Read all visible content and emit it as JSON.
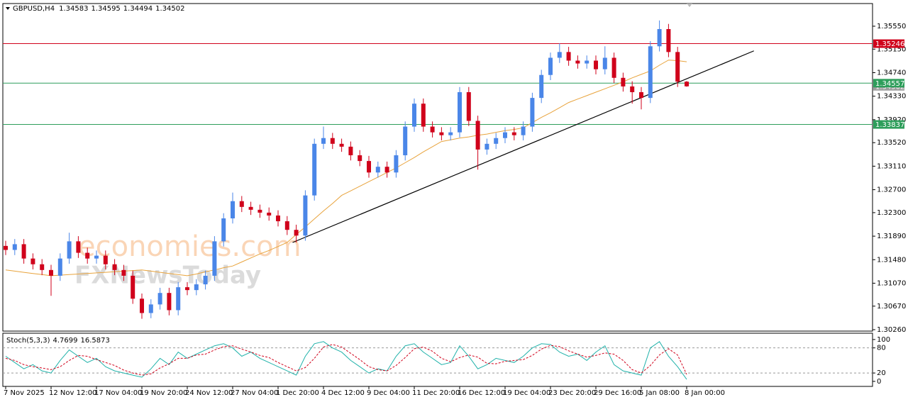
{
  "chart_data": {
    "type": "candlestick",
    "symbol": "GBPUSD,H4",
    "watermark": [
      "economies.com",
      "FXNewsToday"
    ],
    "categories": [
      "7 Nov 2025",
      null,
      null,
      null,
      null,
      "12 Nov 12:00",
      null,
      null,
      null,
      null,
      "17 Nov 04:00",
      null,
      null,
      null,
      null,
      "19 Nov 20:00",
      null,
      null,
      null,
      null,
      "24 Nov 12:00",
      null,
      null,
      null,
      null,
      "27 Nov 04:00",
      null,
      null,
      null,
      null,
      "1 Dec 20:00",
      null,
      null,
      null,
      null,
      "4 Dec 12:00",
      null,
      null,
      null,
      null,
      "9 Dec 04:00",
      null,
      null,
      null,
      null,
      "11 Dec 20:00",
      null,
      null,
      null,
      null,
      "16 Dec 12:00",
      null,
      null,
      null,
      null,
      "19 Dec 04:00",
      null,
      null,
      null,
      null,
      "23 Dec 20:00",
      null,
      null,
      null,
      null,
      "29 Dec 16:00",
      null,
      null,
      null,
      null,
      "5 Jan 08:00",
      null,
      null,
      null,
      null,
      "8 Jan 00:00"
    ],
    "open": [
      1.3172,
      1.3165,
      1.3175,
      1.315,
      1.314,
      1.313,
      1.312,
      1.315,
      1.318,
      1.316,
      1.315,
      1.3155,
      1.314,
      1.313,
      1.312,
      1.308,
      1.3055,
      1.307,
      1.309,
      1.306,
      1.31,
      1.3095,
      1.3105,
      1.312,
      1.318,
      1.322,
      1.325,
      1.324,
      1.3235,
      1.323,
      1.3225,
      1.3215,
      1.32,
      1.319,
      1.326,
      1.335,
      1.336,
      1.335,
      1.3345,
      1.333,
      1.332,
      1.33,
      1.331,
      1.33,
      1.333,
      1.338,
      1.342,
      1.338,
      1.337,
      1.3365,
      1.337,
      1.344,
      1.339,
      1.334,
      1.335,
      1.336,
      1.337,
      1.3365,
      1.338,
      1.343,
      1.347,
      1.35,
      1.351,
      1.3495,
      1.349,
      1.3495,
      1.348,
      1.35,
      1.3465,
      1.345,
      1.344,
      1.343,
      1.352,
      1.355,
      1.351,
      1.34583
    ],
    "high": [
      1.3181,
      1.3184,
      1.3184,
      1.3159,
      1.3149,
      1.3139,
      1.3159,
      1.3195,
      1.3189,
      1.3169,
      1.3164,
      1.3164,
      1.3149,
      1.3139,
      1.3129,
      1.3089,
      1.3079,
      1.3099,
      1.3099,
      1.3109,
      1.3109,
      1.3114,
      1.3129,
      1.3189,
      1.3229,
      1.3265,
      1.3259,
      1.3249,
      1.3244,
      1.3239,
      1.3234,
      1.3224,
      1.3209,
      1.3269,
      1.3359,
      1.338,
      1.3369,
      1.3359,
      1.3354,
      1.3339,
      1.3329,
      1.3319,
      1.3319,
      1.3339,
      1.3389,
      1.3429,
      1.3429,
      1.3389,
      1.3379,
      1.3379,
      1.3449,
      1.3449,
      1.3399,
      1.3359,
      1.3369,
      1.3379,
      1.3379,
      1.3389,
      1.3439,
      1.3479,
      1.3509,
      1.3525,
      1.3519,
      1.3504,
      1.3504,
      1.3504,
      1.352,
      1.3509,
      1.3474,
      1.3459,
      1.3449,
      1.3529,
      1.3565,
      1.3559,
      1.3519,
      1.34595
    ],
    "low": [
      1.3156,
      1.3156,
      1.3141,
      1.3131,
      1.3121,
      1.3085,
      1.3111,
      1.3141,
      1.3151,
      1.3141,
      1.3141,
      1.3131,
      1.3121,
      1.3111,
      1.3071,
      1.3045,
      1.3046,
      1.3061,
      1.3051,
      1.3051,
      1.3086,
      1.3086,
      1.3096,
      1.3111,
      1.3171,
      1.3211,
      1.3231,
      1.3226,
      1.3221,
      1.3216,
      1.3206,
      1.3191,
      1.3178,
      1.3181,
      1.3251,
      1.3341,
      1.3341,
      1.3336,
      1.3321,
      1.3311,
      1.3291,
      1.3291,
      1.3291,
      1.3291,
      1.3321,
      1.3371,
      1.3371,
      1.3361,
      1.3356,
      1.3356,
      1.3361,
      1.3381,
      1.3305,
      1.3331,
      1.3341,
      1.3351,
      1.3356,
      1.3356,
      1.3371,
      1.3421,
      1.3461,
      1.3491,
      1.3486,
      1.3481,
      1.3481,
      1.3471,
      1.3471,
      1.3456,
      1.3441,
      1.342,
      1.341,
      1.3421,
      1.3511,
      1.3501,
      1.3449,
      1.34494
    ],
    "close": [
      1.3165,
      1.3175,
      1.315,
      1.314,
      1.313,
      1.312,
      1.315,
      1.318,
      1.316,
      1.315,
      1.3155,
      1.314,
      1.313,
      1.312,
      1.308,
      1.3055,
      1.307,
      1.309,
      1.306,
      1.31,
      1.3095,
      1.3105,
      1.312,
      1.318,
      1.322,
      1.325,
      1.324,
      1.3235,
      1.323,
      1.3225,
      1.3215,
      1.32,
      1.319,
      1.326,
      1.335,
      1.336,
      1.335,
      1.3345,
      1.333,
      1.332,
      1.33,
      1.331,
      1.33,
      1.333,
      1.338,
      1.342,
      1.338,
      1.337,
      1.3365,
      1.337,
      1.344,
      1.339,
      1.334,
      1.335,
      1.336,
      1.337,
      1.3365,
      1.338,
      1.343,
      1.347,
      1.35,
      1.351,
      1.3495,
      1.349,
      1.3495,
      1.348,
      1.35,
      1.3465,
      1.345,
      1.344,
      1.343,
      1.352,
      1.355,
      1.351,
      1.34583,
      1.34502
    ],
    "up_color": "#4a86e8",
    "down_color": "#d0021b",
    "ma": {
      "color": "#e8a33c",
      "values": [
        1.313,
        1.3128,
        1.3126,
        1.3124,
        1.3122,
        1.312,
        1.3121,
        1.3122,
        1.3123,
        1.3124,
        1.3125,
        1.3126,
        1.3127,
        1.3128,
        1.3129,
        1.313,
        1.3128,
        1.3126,
        1.3124,
        1.3122,
        1.312,
        1.3123,
        1.3127,
        1.313,
        1.3134,
        1.3137,
        1.3144,
        1.3151,
        1.3158,
        1.3164,
        1.3171,
        1.3178,
        1.3192,
        1.3205,
        1.3219,
        1.3233,
        1.3246,
        1.326,
        1.3268,
        1.3276,
        1.3284,
        1.3292,
        1.33,
        1.3308,
        1.3317,
        1.3326,
        1.3336,
        1.3345,
        1.3354,
        1.3357,
        1.336,
        1.3362,
        1.3365,
        1.3367,
        1.337,
        1.3373,
        1.3375,
        1.3378,
        1.3387,
        1.3396,
        1.3404,
        1.3413,
        1.3422,
        1.3428,
        1.3434,
        1.344,
        1.3446,
        1.3452,
        1.3458,
        1.3465,
        1.3471,
        1.3477,
        1.3487,
        1.3496,
        1.3495,
        1.3493
      ]
    },
    "ylim": [
      1.30235,
      1.35945
    ],
    "yticks": [
      {
        "value": 1.3555,
        "label": "1.35550"
      },
      {
        "value": 1.3515,
        "label": "1.35150"
      },
      {
        "value": 1.3474,
        "label": "1.34740"
      },
      {
        "value": 1.3433,
        "label": "1.34330"
      },
      {
        "value": 1.3392,
        "label": "1.33920"
      },
      {
        "value": 1.3352,
        "label": "1.33520"
      },
      {
        "value": 1.3311,
        "label": "1.33110"
      },
      {
        "value": 1.327,
        "label": "1.32700"
      },
      {
        "value": 1.323,
        "label": "1.32300"
      },
      {
        "value": 1.3189,
        "label": "1.31890"
      },
      {
        "value": 1.3148,
        "label": "1.31480"
      },
      {
        "value": 1.3107,
        "label": "1.31070"
      },
      {
        "value": 1.3067,
        "label": "1.30670"
      },
      {
        "value": 1.3026,
        "label": "1.30260"
      }
    ],
    "hlines": [
      {
        "value": 1.35246,
        "color": "#d0021b"
      },
      {
        "value": 1.34557,
        "color": "#2e9e5b"
      },
      {
        "value": 1.33837,
        "color": "#2e9e5b"
      }
    ],
    "trendline": {
      "x": [
        31.6,
        82.4
      ],
      "y": [
        1.3178,
        1.3512
      ],
      "color": "#000000"
    },
    "stoch": {
      "name": "Stoch(5,3,3)",
      "ylim": [
        -12,
        115
      ],
      "yticks": [
        100,
        80,
        20,
        0
      ],
      "levels": [
        80,
        20
      ],
      "k": {
        "color": "#20b2aa",
        "values": [
          60,
          45,
          30,
          40,
          25,
          20,
          50,
          75,
          60,
          45,
          55,
          35,
          25,
          20,
          15,
          10,
          30,
          55,
          40,
          70,
          55,
          65,
          75,
          85,
          90,
          80,
          60,
          70,
          55,
          45,
          35,
          25,
          15,
          60,
          90,
          95,
          80,
          70,
          50,
          35,
          20,
          30,
          25,
          60,
          85,
          90,
          70,
          55,
          40,
          45,
          85,
          60,
          30,
          40,
          55,
          50,
          45,
          60,
          80,
          90,
          88,
          70,
          60,
          65,
          50,
          70,
          85,
          40,
          25,
          20,
          15,
          80,
          95,
          60,
          35,
          4.7699
        ]
      },
      "d": {
        "color": "#d0021b",
        "values": [
          55,
          50,
          40,
          35,
          32,
          28,
          35,
          50,
          62,
          60,
          52,
          45,
          38,
          27,
          20,
          15,
          18,
          32,
          42,
          55,
          55,
          63,
          65,
          75,
          83,
          85,
          77,
          70,
          62,
          57,
          45,
          35,
          25,
          33,
          55,
          82,
          88,
          82,
          67,
          52,
          35,
          28,
          25,
          38,
          57,
          78,
          82,
          72,
          55,
          47,
          57,
          63,
          58,
          43,
          42,
          48,
          50,
          52,
          62,
          77,
          86,
          83,
          73,
          65,
          58,
          62,
          68,
          65,
          50,
          28,
          20,
          38,
          63,
          78,
          63,
          16.5873
        ]
      }
    }
  }
}
